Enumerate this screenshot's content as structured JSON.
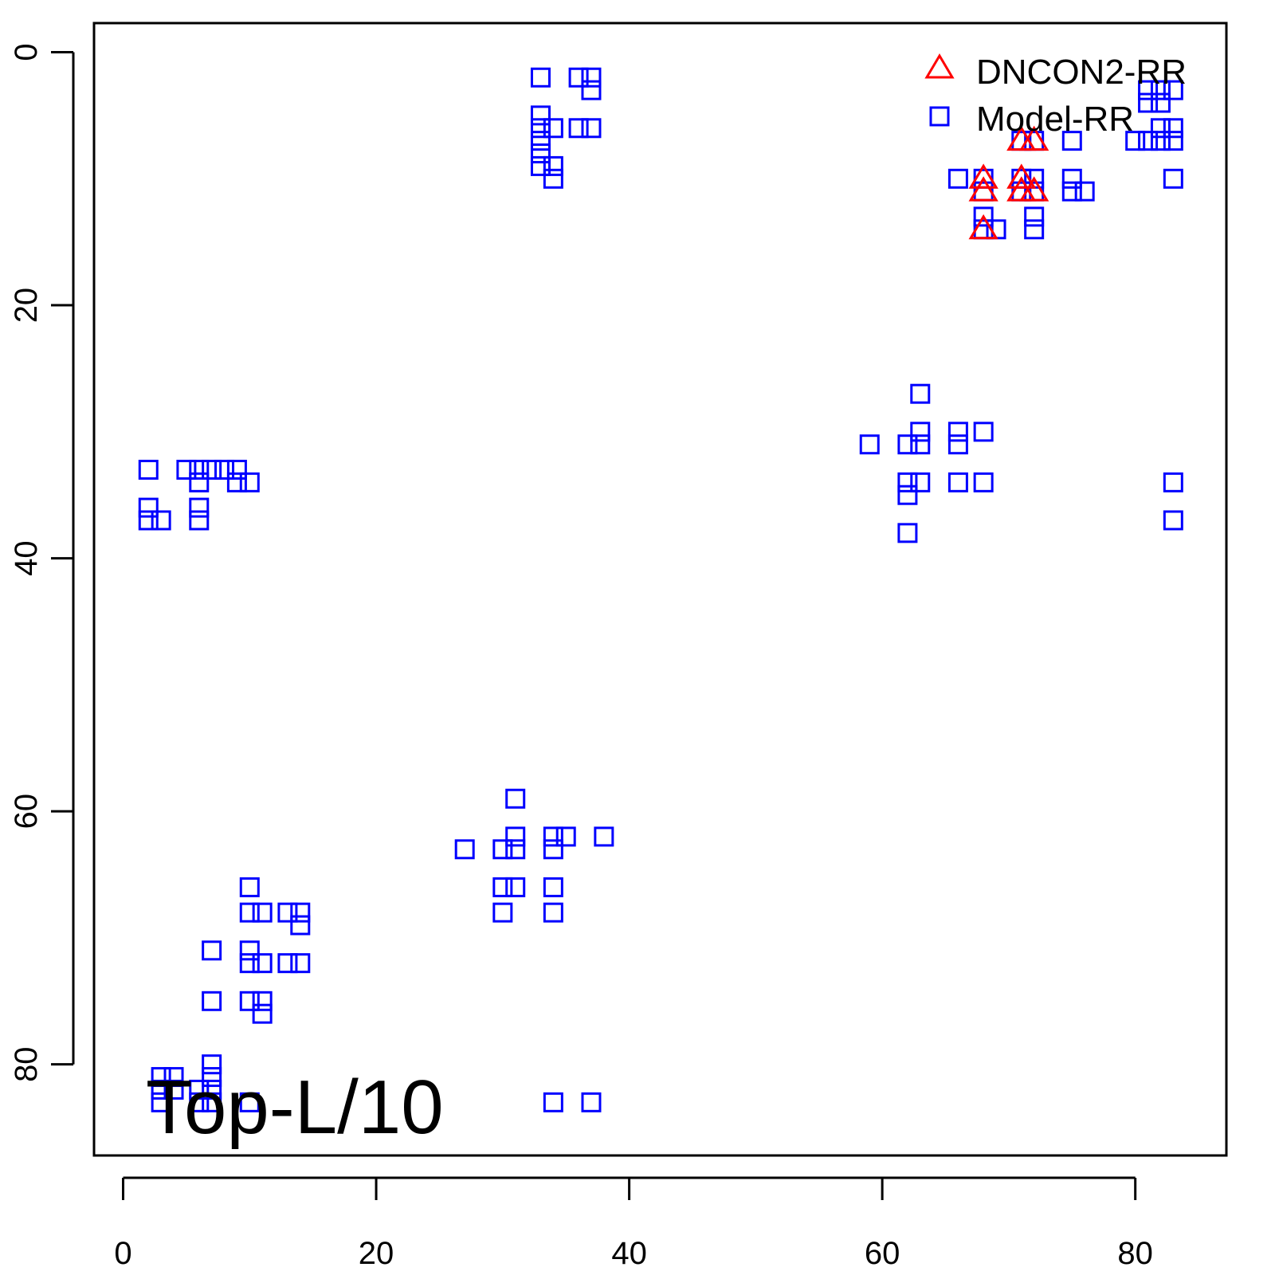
{
  "chart_data": {
    "type": "scatter",
    "title": "",
    "xlabel": "",
    "ylabel": "",
    "xlim": [
      -2.3,
      87.2
    ],
    "ylim": [
      -2.3,
      87.2
    ],
    "y_reversed": true,
    "x_ticks": [
      "0",
      "20",
      "40",
      "60",
      "80"
    ],
    "y_ticks": [
      "0",
      "20",
      "40",
      "60",
      "80"
    ],
    "annotation": "Top-L/10",
    "legend_position": "top-right",
    "series": [
      {
        "name": "DNCON2-RR",
        "marker": "triangle",
        "color": "#ff0000",
        "points": [
          [
            68,
            10
          ],
          [
            68,
            11
          ],
          [
            68,
            14
          ],
          [
            71,
            7
          ],
          [
            71,
            10
          ],
          [
            71,
            11
          ],
          [
            72,
            7
          ],
          [
            72,
            11
          ]
        ]
      },
      {
        "name": "Model-RR",
        "marker": "square",
        "color": "#0000ff",
        "points": [
          [
            33,
            2
          ],
          [
            36,
            2
          ],
          [
            37,
            2
          ],
          [
            37,
            3
          ],
          [
            33,
            5
          ],
          [
            33,
            6
          ],
          [
            33,
            7
          ],
          [
            33,
            8
          ],
          [
            33,
            9
          ],
          [
            34,
            6
          ],
          [
            36,
            6
          ],
          [
            37,
            6
          ],
          [
            34,
            9
          ],
          [
            34,
            10
          ],
          [
            81,
            3
          ],
          [
            82,
            3
          ],
          [
            83,
            3
          ],
          [
            81,
            4
          ],
          [
            82,
            4
          ],
          [
            82,
            6
          ],
          [
            83,
            6
          ],
          [
            80,
            7
          ],
          [
            81,
            7
          ],
          [
            82,
            7
          ],
          [
            83,
            7
          ],
          [
            83,
            10
          ],
          [
            71,
            7
          ],
          [
            72,
            7
          ],
          [
            75,
            7
          ],
          [
            66,
            10
          ],
          [
            68,
            10
          ],
          [
            71,
            10
          ],
          [
            72,
            10
          ],
          [
            75,
            10
          ],
          [
            68,
            11
          ],
          [
            71,
            11
          ],
          [
            72,
            11
          ],
          [
            75,
            11
          ],
          [
            76,
            11
          ],
          [
            68,
            13
          ],
          [
            72,
            13
          ],
          [
            68,
            14
          ],
          [
            69,
            14
          ],
          [
            72,
            14
          ],
          [
            63,
            27
          ],
          [
            63,
            30
          ],
          [
            66,
            30
          ],
          [
            68,
            30
          ],
          [
            59,
            31
          ],
          [
            62,
            31
          ],
          [
            63,
            31
          ],
          [
            66,
            31
          ],
          [
            62,
            34
          ],
          [
            63,
            34
          ],
          [
            66,
            34
          ],
          [
            68,
            34
          ],
          [
            62,
            35
          ],
          [
            62,
            38
          ],
          [
            83,
            34
          ],
          [
            83,
            37
          ],
          [
            2,
            33
          ],
          [
            5,
            33
          ],
          [
            6,
            33
          ],
          [
            7,
            33
          ],
          [
            8,
            33
          ],
          [
            9,
            33
          ],
          [
            6,
            34
          ],
          [
            9,
            34
          ],
          [
            10,
            34
          ],
          [
            2,
            36
          ],
          [
            6,
            36
          ],
          [
            2,
            37
          ],
          [
            3,
            37
          ],
          [
            6,
            37
          ],
          [
            31,
            59
          ],
          [
            31,
            62
          ],
          [
            34,
            62
          ],
          [
            35,
            62
          ],
          [
            38,
            62
          ],
          [
            27,
            63
          ],
          [
            30,
            63
          ],
          [
            31,
            63
          ],
          [
            34,
            63
          ],
          [
            30,
            66
          ],
          [
            31,
            66
          ],
          [
            34,
            66
          ],
          [
            30,
            68
          ],
          [
            34,
            68
          ],
          [
            10,
            66
          ],
          [
            10,
            68
          ],
          [
            11,
            68
          ],
          [
            13,
            68
          ],
          [
            14,
            68
          ],
          [
            14,
            69
          ],
          [
            7,
            71
          ],
          [
            10,
            71
          ],
          [
            10,
            72
          ],
          [
            11,
            72
          ],
          [
            13,
            72
          ],
          [
            14,
            72
          ],
          [
            7,
            75
          ],
          [
            10,
            75
          ],
          [
            11,
            75
          ],
          [
            11,
            76
          ],
          [
            7,
            80
          ],
          [
            7,
            81
          ],
          [
            7,
            82
          ],
          [
            3,
            81
          ],
          [
            4,
            81
          ],
          [
            3,
            82
          ],
          [
            4,
            82
          ],
          [
            6,
            82
          ],
          [
            3,
            83
          ],
          [
            6,
            83
          ],
          [
            7,
            83
          ],
          [
            10,
            83
          ],
          [
            34,
            83
          ],
          [
            37,
            83
          ]
        ]
      }
    ]
  }
}
